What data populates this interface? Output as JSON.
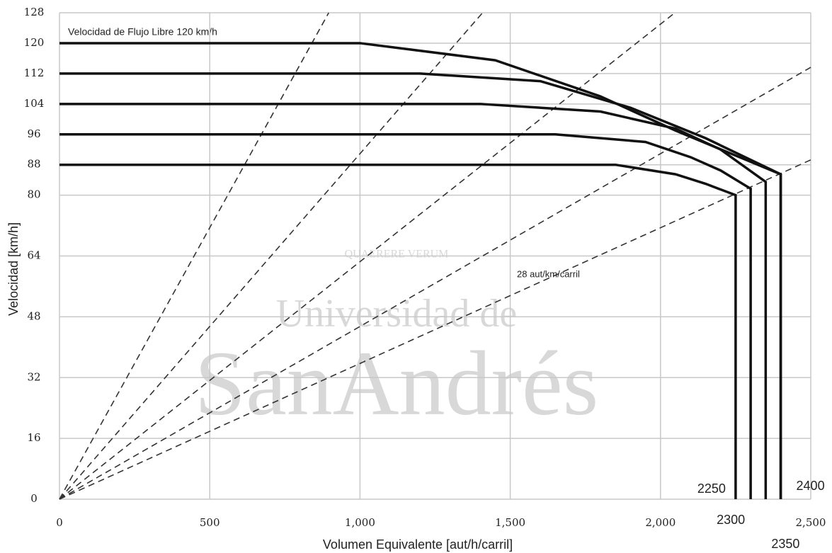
{
  "chart_data": {
    "type": "line",
    "annotation": "Velocidad de Flujo Libre 120 km/h",
    "x_label": "Volumen Equivalente [aut/h/carril]",
    "y_label": "Velocidad [km/h]",
    "xlim": [
      0,
      2500
    ],
    "ylim": [
      0,
      128
    ],
    "xticks": [
      0,
      500,
      {
        "value": 1000,
        "label": "1,000"
      },
      {
        "value": 1500,
        "label": "1,500"
      },
      {
        "value": 2000,
        "label": "2,000"
      },
      {
        "value": 2500,
        "label": "2,500"
      }
    ],
    "yticks": [
      0,
      16,
      32,
      48,
      64,
      80,
      88,
      96,
      104,
      112,
      120,
      128
    ],
    "grid": true,
    "series": [
      {
        "color": "#111111",
        "x": [
          0,
          1000,
          1450,
          1800,
          2050,
          2400,
          2400
        ],
        "values": [
          120,
          120,
          115.5,
          106,
          97,
          85.5,
          0
        ]
      },
      {
        "color": "#111111",
        "x": [
          0,
          1200,
          1600,
          1900,
          2150,
          2400,
          2400
        ],
        "values": [
          112,
          112,
          110,
          103,
          95,
          85.5,
          0
        ]
      },
      {
        "color": "#111111",
        "x": [
          0,
          1400,
          1800,
          2050,
          2200,
          2350,
          2350
        ],
        "values": [
          104,
          104,
          102,
          97.5,
          92,
          83.5,
          0
        ]
      },
      {
        "color": "#111111",
        "x": [
          0,
          1650,
          1950,
          2100,
          2200,
          2300,
          2300
        ],
        "values": [
          96,
          96,
          94,
          90,
          86.5,
          81.7,
          0
        ]
      },
      {
        "color": "#111111",
        "x": [
          0,
          1850,
          2050,
          2150,
          2250,
          2250
        ],
        "values": [
          88,
          88,
          85.5,
          83,
          80,
          0
        ]
      }
    ],
    "density_lines": [
      7,
      11,
      16,
      22,
      28
    ],
    "density_label": "28 aut/km/carril",
    "capacity_labels": [
      2250,
      2300,
      2350,
      2400
    ],
    "watermark": [
      "Universidad de",
      "SanAndrés",
      "QUAERERE VERUM"
    ]
  }
}
